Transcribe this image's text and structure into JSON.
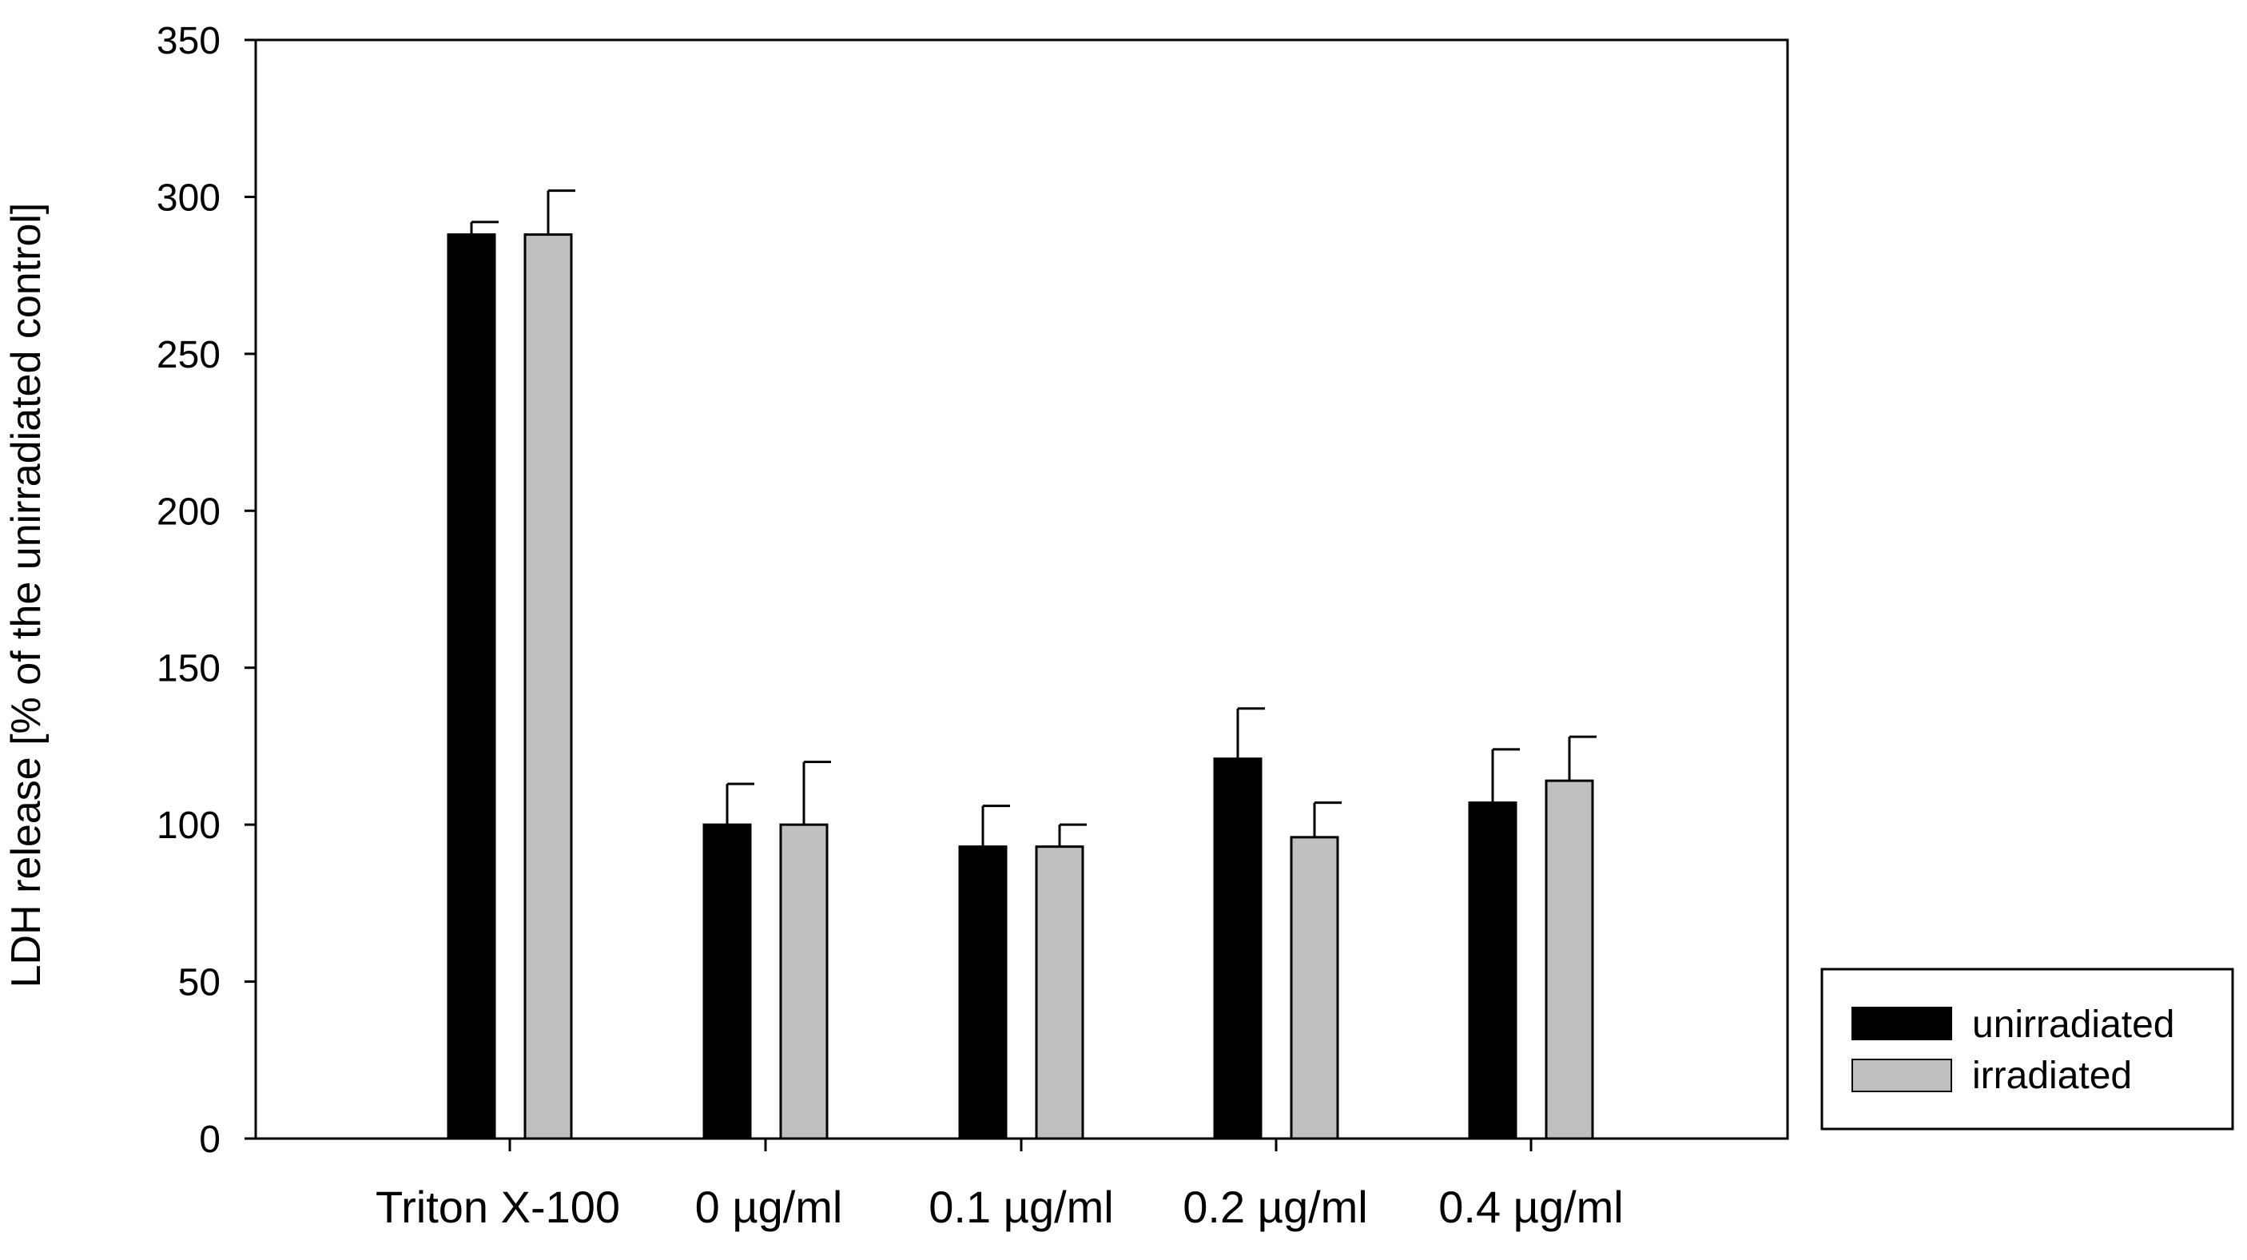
{
  "chart_data": {
    "type": "bar",
    "title": "",
    "xlabel": "",
    "ylabel": "LDH release [% of the unirradiated control]",
    "ylim": [
      0,
      350
    ],
    "yticks": [
      0,
      50,
      100,
      150,
      200,
      250,
      300,
      350
    ],
    "categories": [
      "Triton X-100",
      "0 µg/ml",
      "0.1 µg/ml",
      "0.2 µg/ml",
      "0.4 µg/ml"
    ],
    "series": [
      {
        "name": "unirradiated",
        "color": "#000000",
        "values": [
          288,
          100,
          93,
          121,
          107
        ],
        "errors": [
          4,
          13,
          13,
          16,
          17
        ]
      },
      {
        "name": "irradiated",
        "color": "#c0c0c0",
        "values": [
          288,
          100,
          93,
          96,
          114
        ],
        "errors": [
          14,
          20,
          7,
          11,
          14
        ]
      }
    ],
    "grid": false,
    "legend_position": "right"
  }
}
